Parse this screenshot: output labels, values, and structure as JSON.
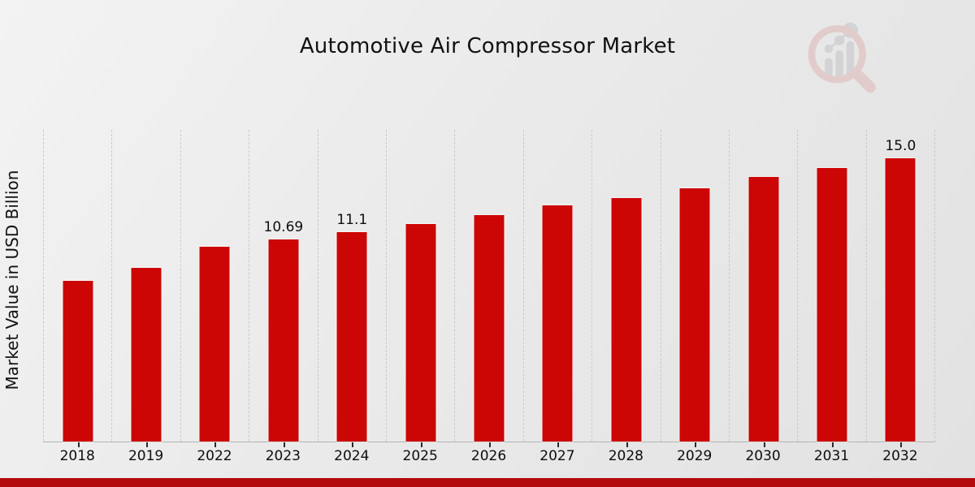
{
  "page": {
    "title": "Automotive Air Compressor Market",
    "y_axis_label": "Market Value in USD Billion",
    "watermark_icon": "magnifier-bar-chart-logo"
  },
  "colors": {
    "bar": "#cc0605",
    "bottom_band": "#b30b0b",
    "background": "#eaeaea",
    "gridline": "#c9c9c9"
  },
  "chart_data": {
    "type": "bar",
    "title": "Automotive Air Compressor Market",
    "xlabel": "",
    "ylabel": "Market Value in USD Billion",
    "categories": [
      "2018",
      "2019",
      "2022",
      "2023",
      "2024",
      "2025",
      "2026",
      "2027",
      "2028",
      "2029",
      "2030",
      "2031",
      "2032"
    ],
    "values": [
      8.5,
      9.2,
      10.3,
      10.69,
      11.1,
      11.5,
      12.0,
      12.5,
      12.9,
      13.4,
      14.0,
      14.5,
      15.0
    ],
    "data_labels": [
      "",
      "",
      "",
      "10.69",
      "11.1",
      "",
      "",
      "",
      "",
      "",
      "",
      "",
      "15.0"
    ],
    "ylim": [
      0,
      16.5
    ],
    "y_axis_ticks": "none",
    "grid": "vertical-dashed",
    "legend": "none",
    "bar_color": "#cc0605"
  }
}
